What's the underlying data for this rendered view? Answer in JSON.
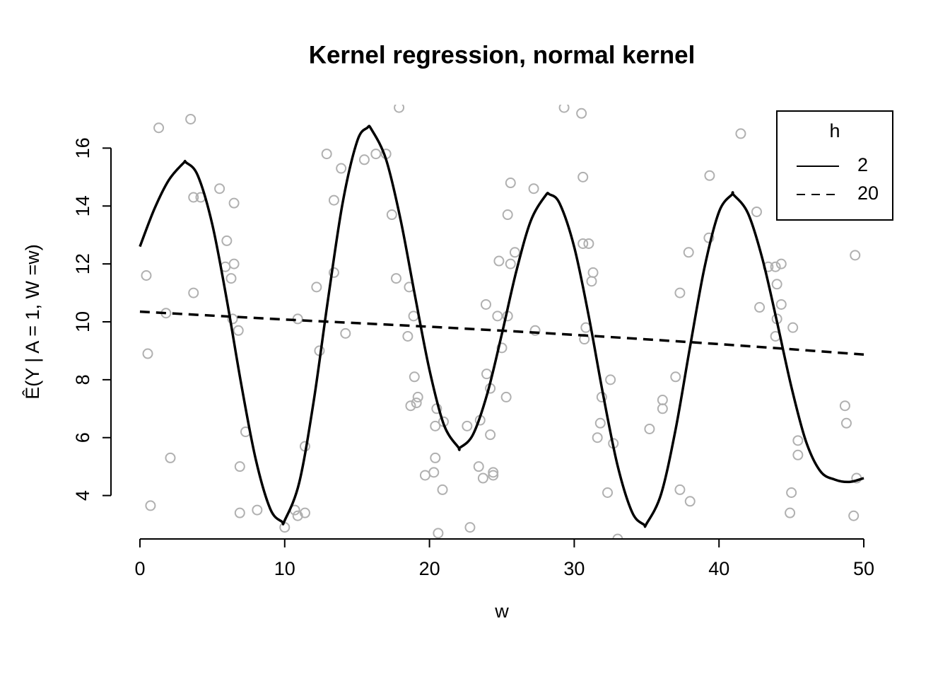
{
  "chart_data": {
    "type": "scatter",
    "title": "Kernel regression, normal kernel",
    "xlabel": "w",
    "ylabel": "Ê(Y | A = 1, W =w)",
    "xlim": [
      -2,
      52
    ],
    "ylim": [
      2.5,
      17.5
    ],
    "xticks": [
      0,
      10,
      20,
      30,
      40,
      50
    ],
    "yticks": [
      4,
      6,
      8,
      10,
      12,
      14,
      16
    ],
    "points": {
      "color": "#b0b0b0",
      "x": [
        1.3,
        3.5,
        0.44,
        0.54,
        0.73,
        1.8,
        2.1,
        3.7,
        4.2,
        3.7,
        5.5,
        6.0,
        5.9,
        6.3,
        6.5,
        6.5,
        6.4,
        6.8,
        7.3,
        6.9,
        6.9,
        8.1,
        10.0,
        10.7,
        10.9,
        11.4,
        10.9,
        11.4,
        12.2,
        12.4,
        12.9,
        13.4,
        13.4,
        13.9,
        14.2,
        15.5,
        16.3,
        17.0,
        17.9,
        17.4,
        17.7,
        18.6,
        18.9,
        18.5,
        18.96,
        18.7,
        19.1,
        19.2,
        20.5,
        20.4,
        20.97,
        20.4,
        19.7,
        20.3,
        20.9,
        20.6,
        22.6,
        22.8,
        23.4,
        23.5,
        23.7,
        24.4,
        24.4,
        24.2,
        24.2,
        23.95,
        23.9,
        24.8,
        24.7,
        25.0,
        25.3,
        25.4,
        25.6,
        25.6,
        25.9,
        25.4,
        27.2,
        27.3,
        29.3,
        30.5,
        30.6,
        30.6,
        31.0,
        31.3,
        31.2,
        30.8,
        30.7,
        32.5,
        31.9,
        31.8,
        31.6,
        32.7,
        32.3,
        33.0,
        35.2,
        36.1,
        36.1,
        37.0,
        37.3,
        37.3,
        38.0,
        37.9,
        39.3,
        39.35,
        41.5,
        42.6,
        42.8,
        43.4,
        43.9,
        44.3,
        44.0,
        44.3,
        44.0,
        43.9,
        45.1,
        45.45,
        45.45,
        45.0,
        44.9,
        48.7,
        48.8,
        49.3,
        49.4,
        49.5
      ],
      "y": [
        16.7,
        17.0,
        11.6,
        8.9,
        3.65,
        10.3,
        5.3,
        14.3,
        14.3,
        11.0,
        14.6,
        12.8,
        11.9,
        11.5,
        14.1,
        12.0,
        10.1,
        9.7,
        6.2,
        5.0,
        3.4,
        3.5,
        2.9,
        3.5,
        3.3,
        3.4,
        10.1,
        5.7,
        11.2,
        9.0,
        15.8,
        14.2,
        11.7,
        15.3,
        9.6,
        15.6,
        15.8,
        15.8,
        17.4,
        13.7,
        11.5,
        11.2,
        10.2,
        9.5,
        8.1,
        7.1,
        7.2,
        7.4,
        7.0,
        6.4,
        6.55,
        5.3,
        4.7,
        4.8,
        4.2,
        2.7,
        6.4,
        2.9,
        5.0,
        6.6,
        4.6,
        4.8,
        4.7,
        6.1,
        7.7,
        8.2,
        10.6,
        12.1,
        10.2,
        9.1,
        7.4,
        13.7,
        14.8,
        12.0,
        12.4,
        10.2,
        14.6,
        9.7,
        17.4,
        17.2,
        15.0,
        12.7,
        12.7,
        11.7,
        11.4,
        9.8,
        9.4,
        8.0,
        7.4,
        6.5,
        6.0,
        5.8,
        4.1,
        2.5,
        6.3,
        7.3,
        7.0,
        8.1,
        11.0,
        4.2,
        3.8,
        12.4,
        12.9,
        15.05,
        16.5,
        13.8,
        10.5,
        11.9,
        11.9,
        12.0,
        11.3,
        10.6,
        10.1,
        9.5,
        9.8,
        5.9,
        5.4,
        4.1,
        3.4,
        7.1,
        6.5,
        3.3,
        12.3,
        4.6
      ]
    },
    "legend_title": "h",
    "legend_position": "top-right",
    "series": [
      {
        "name": "2",
        "color": "#000000",
        "dash": false,
        "x": [
          0,
          1,
          2,
          3,
          3.2,
          4,
          5,
          6,
          7,
          8,
          9,
          9.8,
          10,
          11,
          12,
          13,
          14,
          15,
          15.7,
          16,
          17,
          18,
          19,
          20,
          21,
          22,
          22.1,
          23,
          24,
          25,
          26,
          27,
          28,
          28.3,
          29,
          30,
          31,
          32,
          33,
          34,
          34.8,
          35,
          36,
          37,
          38,
          39,
          40,
          40.9,
          41,
          42,
          43,
          44,
          45,
          46,
          47,
          48,
          49,
          50
        ],
        "values": [
          12.6,
          13.9,
          14.9,
          15.48,
          15.5,
          15.05,
          13.36,
          10.76,
          7.84,
          5.25,
          3.54,
          3.1,
          3.14,
          4.44,
          7.25,
          10.8,
          14.1,
          16.23,
          16.7,
          16.64,
          15.61,
          13.54,
          10.9,
          8.34,
          6.44,
          5.66,
          5.65,
          6.1,
          7.53,
          9.58,
          11.75,
          13.49,
          14.35,
          14.4,
          14.08,
          12.58,
          10.2,
          7.47,
          5.02,
          3.42,
          3.0,
          3.03,
          4.05,
          6.28,
          9.14,
          11.88,
          13.8,
          14.4,
          14.39,
          13.75,
          12.17,
          10.01,
          7.75,
          5.88,
          4.84,
          4.55,
          4.47,
          4.6
        ]
      },
      {
        "name": "20",
        "color": "#000000",
        "dash": true,
        "x": [
          0,
          10,
          20,
          30,
          40,
          50
        ],
        "values": [
          10.35,
          10.08,
          9.83,
          9.55,
          9.23,
          8.87
        ]
      }
    ]
  }
}
